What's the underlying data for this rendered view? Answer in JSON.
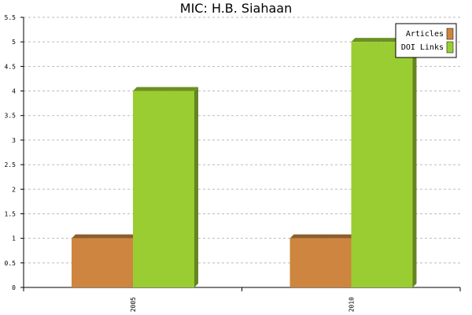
{
  "chart_data": {
    "type": "bar",
    "title": "MIC: H.B. Siahaan",
    "categories": [
      "2005",
      "2010"
    ],
    "series": [
      {
        "name": "Articles",
        "color": "#cd853f",
        "values": [
          1,
          1
        ]
      },
      {
        "name": "DOI Links",
        "color": "#9acd32",
        "values": [
          4,
          5
        ]
      }
    ],
    "ylim": [
      0,
      5.5
    ],
    "yticks": [
      0,
      0.5,
      1,
      1.5,
      2,
      2.5,
      3,
      3.5,
      4,
      4.5,
      5,
      5.5
    ],
    "grid": true,
    "legend": "top-right"
  }
}
